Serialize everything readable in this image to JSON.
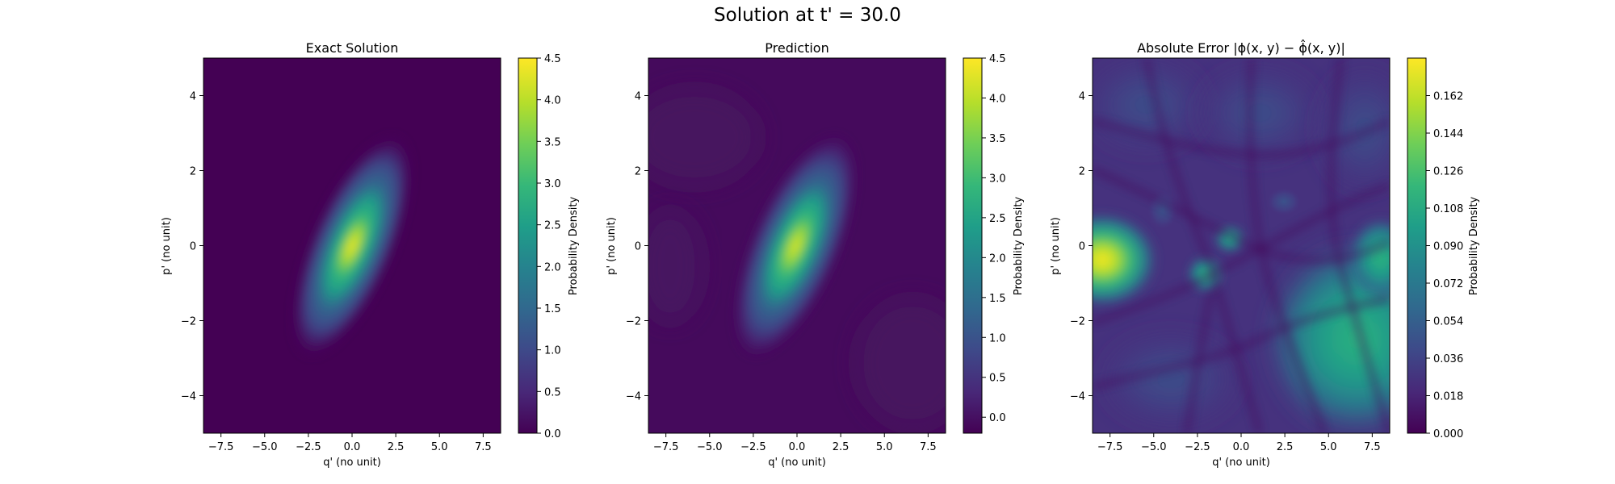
{
  "figure": {
    "title": "Solution at t' = 30.0"
  },
  "colors": {
    "viridis": [
      "#440154",
      "#482878",
      "#3e4989",
      "#31688e",
      "#26828e",
      "#1f9e89",
      "#35b779",
      "#6ece58",
      "#b5de2b",
      "#fde725"
    ]
  },
  "chart_data": [
    {
      "type": "heatmap",
      "title": "Exact Solution",
      "xlabel": "q' (no unit)",
      "ylabel": "p' (no unit)",
      "xlim": [
        -8.5,
        8.5
      ],
      "ylim": [
        -5,
        5
      ],
      "xticks": [
        "−7.5",
        "−5.0",
        "−2.5",
        "0.0",
        "2.5",
        "5.0",
        "7.5"
      ],
      "yticks": [
        "−4",
        "−2",
        "0",
        "2",
        "4"
      ],
      "colorbar": {
        "label": "Probability Density",
        "range": [
          0,
          4.5
        ],
        "ticks": [
          "0.0",
          "0.5",
          "1.0",
          "1.5",
          "2.0",
          "2.5",
          "3.0",
          "3.5",
          "4.0",
          "4.5"
        ]
      },
      "peak": {
        "q": 0.0,
        "p": 0.0,
        "value": 4.4
      }
    },
    {
      "type": "heatmap",
      "title": "Prediction",
      "xlabel": "q' (no unit)",
      "ylabel": "p' (no unit)",
      "xlim": [
        -8.5,
        8.5
      ],
      "ylim": [
        -5,
        5
      ],
      "xticks": [
        "−7.5",
        "−5.0",
        "−2.5",
        "0.0",
        "2.5",
        "5.0",
        "7.5"
      ],
      "yticks": [
        "−4",
        "−2",
        "0",
        "2",
        "4"
      ],
      "colorbar": {
        "label": "Probability Density",
        "range": [
          -0.2,
          4.5
        ],
        "ticks": [
          "0.0",
          "0.5",
          "1.0",
          "1.5",
          "2.0",
          "2.5",
          "3.0",
          "3.5",
          "4.0",
          "4.5"
        ]
      },
      "peak": {
        "q": 0.0,
        "p": 0.0,
        "value": 4.2
      }
    },
    {
      "type": "heatmap",
      "title": "Absolute Error |ϕ(x, y) − ϕ̂(x, y)|",
      "xlabel": "q' (no unit)",
      "ylabel": "p' (no unit)",
      "xlim": [
        -8.5,
        8.5
      ],
      "ylim": [
        -5,
        5
      ],
      "xticks": [
        "−7.5",
        "−5.0",
        "−2.5",
        "0.0",
        "2.5",
        "5.0",
        "7.5"
      ],
      "yticks": [
        "−4",
        "−2",
        "0",
        "2",
        "4"
      ],
      "colorbar": {
        "label": "Probability Density",
        "range": [
          0,
          0.18
        ],
        "ticks": [
          "0.000",
          "0.018",
          "0.036",
          "0.054",
          "0.072",
          "0.090",
          "0.108",
          "0.126",
          "0.144",
          "0.162"
        ]
      },
      "hotspots": [
        {
          "q": -8.5,
          "p": -0.4,
          "value": 0.175
        },
        {
          "q": -1.3,
          "p": -0.8,
          "value": 0.11
        },
        {
          "q": 5.5,
          "p": -2.0,
          "value": 0.085
        },
        {
          "q": 8.3,
          "p": -0.2,
          "value": 0.07
        }
      ]
    }
  ]
}
